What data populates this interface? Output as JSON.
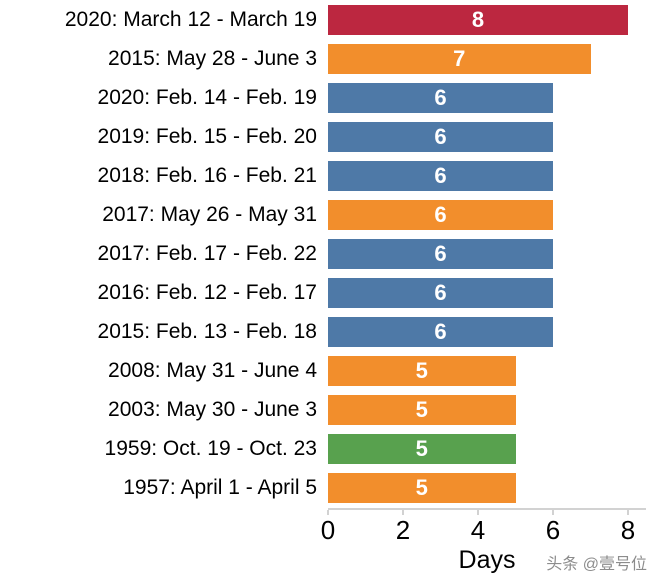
{
  "watermark": "头条 @壹号位",
  "chart_data": {
    "type": "bar",
    "orientation": "horizontal",
    "title": "",
    "xlabel": "Days",
    "ylabel": "",
    "xlim": [
      0,
      8.5
    ],
    "xticks": [
      0,
      2,
      4,
      6,
      8
    ],
    "grid": false,
    "legend": "none",
    "value_label_color": "#ffffff",
    "palette": {
      "red": "#bc2740",
      "orange": "#f28e2c",
      "blue": "#4e79a7",
      "green": "#58a14e"
    },
    "rows": [
      {
        "label": "2020: March 12 - March 19",
        "value": 8,
        "color": "red"
      },
      {
        "label": "2015: May 28 - June 3",
        "value": 7,
        "color": "orange"
      },
      {
        "label": "2020: Feb. 14 - Feb. 19",
        "value": 6,
        "color": "blue"
      },
      {
        "label": "2019: Feb. 15 - Feb. 20",
        "value": 6,
        "color": "blue"
      },
      {
        "label": "2018: Feb. 16 - Feb. 21",
        "value": 6,
        "color": "blue"
      },
      {
        "label": "2017: May 26 - May 31",
        "value": 6,
        "color": "orange"
      },
      {
        "label": "2017: Feb. 17 - Feb. 22",
        "value": 6,
        "color": "blue"
      },
      {
        "label": "2016: Feb. 12 - Feb. 17",
        "value": 6,
        "color": "blue"
      },
      {
        "label": "2015: Feb. 13 - Feb. 18",
        "value": 6,
        "color": "blue"
      },
      {
        "label": "2008: May 31 - June 4",
        "value": 5,
        "color": "orange"
      },
      {
        "label": "2003: May 30 - June 3",
        "value": 5,
        "color": "orange"
      },
      {
        "label": "1959: Oct. 19 - Oct. 23",
        "value": 5,
        "color": "green"
      },
      {
        "label": "1957: April 1 - April 5",
        "value": 5,
        "color": "orange"
      }
    ]
  }
}
